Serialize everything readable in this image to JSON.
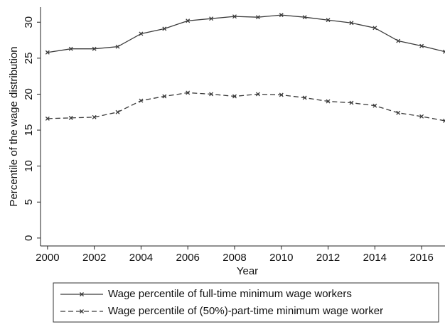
{
  "chart_data": {
    "type": "line",
    "x": [
      2000,
      2001,
      2002,
      2003,
      2004,
      2005,
      2006,
      2007,
      2008,
      2009,
      2010,
      2011,
      2012,
      2013,
      2014,
      2015,
      2016,
      2017
    ],
    "series": [
      {
        "name": "Wage percentile of full-time minimum wage workers",
        "color": "#3a3a3a",
        "dash": false,
        "values": [
          25.8,
          26.3,
          26.3,
          26.6,
          28.4,
          29.1,
          30.2,
          30.5,
          30.8,
          30.7,
          31.0,
          30.7,
          30.3,
          29.9,
          29.2,
          27.4,
          26.7,
          25.9
        ]
      },
      {
        "name": "Wage percentile of (50%)-part-time minimum wage worker",
        "color": "#3a3a3a",
        "dash": true,
        "values": [
          16.6,
          16.7,
          16.8,
          17.5,
          19.1,
          19.7,
          20.2,
          20.0,
          19.7,
          20.0,
          19.9,
          19.5,
          19.0,
          18.8,
          18.4,
          17.4,
          16.9,
          16.3
        ]
      }
    ],
    "xlabel": "Year",
    "ylabel": "Percentile of the wage distribution",
    "xlim": [
      1999.7,
      2017
    ],
    "ylim": [
      -1.1,
      32.1
    ],
    "xticks": [
      2000,
      2002,
      2004,
      2006,
      2008,
      2010,
      2012,
      2014,
      2016
    ],
    "yticks": [
      0,
      5,
      10,
      15,
      20,
      25,
      30
    ],
    "legend": "bottom"
  }
}
